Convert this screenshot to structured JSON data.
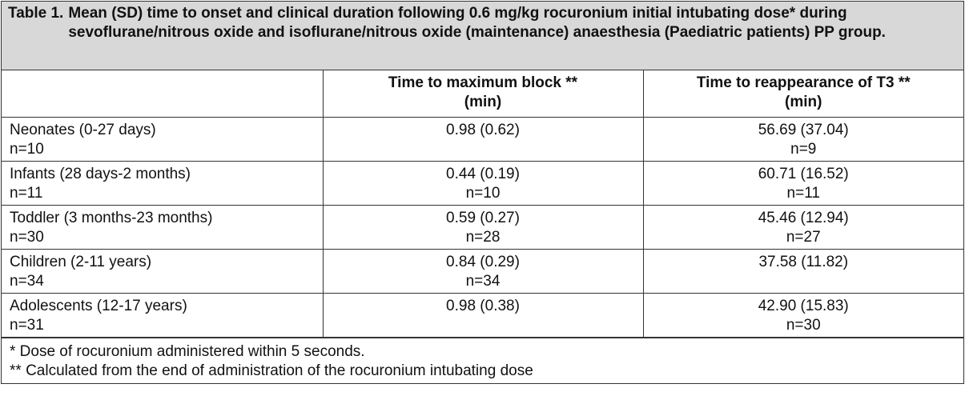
{
  "title": {
    "label": "Table 1.",
    "text": "Mean (SD) time to onset and clinical duration following 0.6 mg/kg rocuronium initial intubating dose* during sevoflurane/nitrous oxide and isoflurane/nitrous oxide (maintenance) anaesthesia (Paediatric patients) PP group."
  },
  "table": {
    "headers": [
      [
        "Time to maximum block **",
        "(min)"
      ],
      [
        "Time to reappearance of T3 **",
        "(min)"
      ]
    ],
    "rows": [
      [
        [
          "Neonates (0-27 days)",
          "n=10"
        ],
        [
          "0.98 (0.62)"
        ],
        [
          "56.69 (37.04)",
          "n=9"
        ]
      ],
      [
        [
          "Infants (28 days-2 months)",
          "n=11"
        ],
        [
          "0.44 (0.19)",
          "n=10"
        ],
        [
          "60.71 (16.52)",
          "n=11"
        ]
      ],
      [
        [
          "Toddler (3 months-23 months)",
          "n=30"
        ],
        [
          "0.59 (0.27)",
          "n=28"
        ],
        [
          "45.46 (12.94)",
          "n=27"
        ]
      ],
      [
        [
          "Children (2-11 years)",
          "n=34"
        ],
        [
          "0.84 (0.29)",
          "n=34"
        ],
        [
          "37.58 (11.82)"
        ]
      ],
      [
        [
          "Adolescents (12-17 years)",
          "n=31"
        ],
        [
          "0.98 (0.38)"
        ],
        [
          "42.90 (15.83)",
          "n=30"
        ]
      ]
    ]
  },
  "footnotes": [
    "* Dose of rocuronium administered within 5 seconds.",
    "** Calculated from the end of administration of the rocuronium intubating dose"
  ]
}
